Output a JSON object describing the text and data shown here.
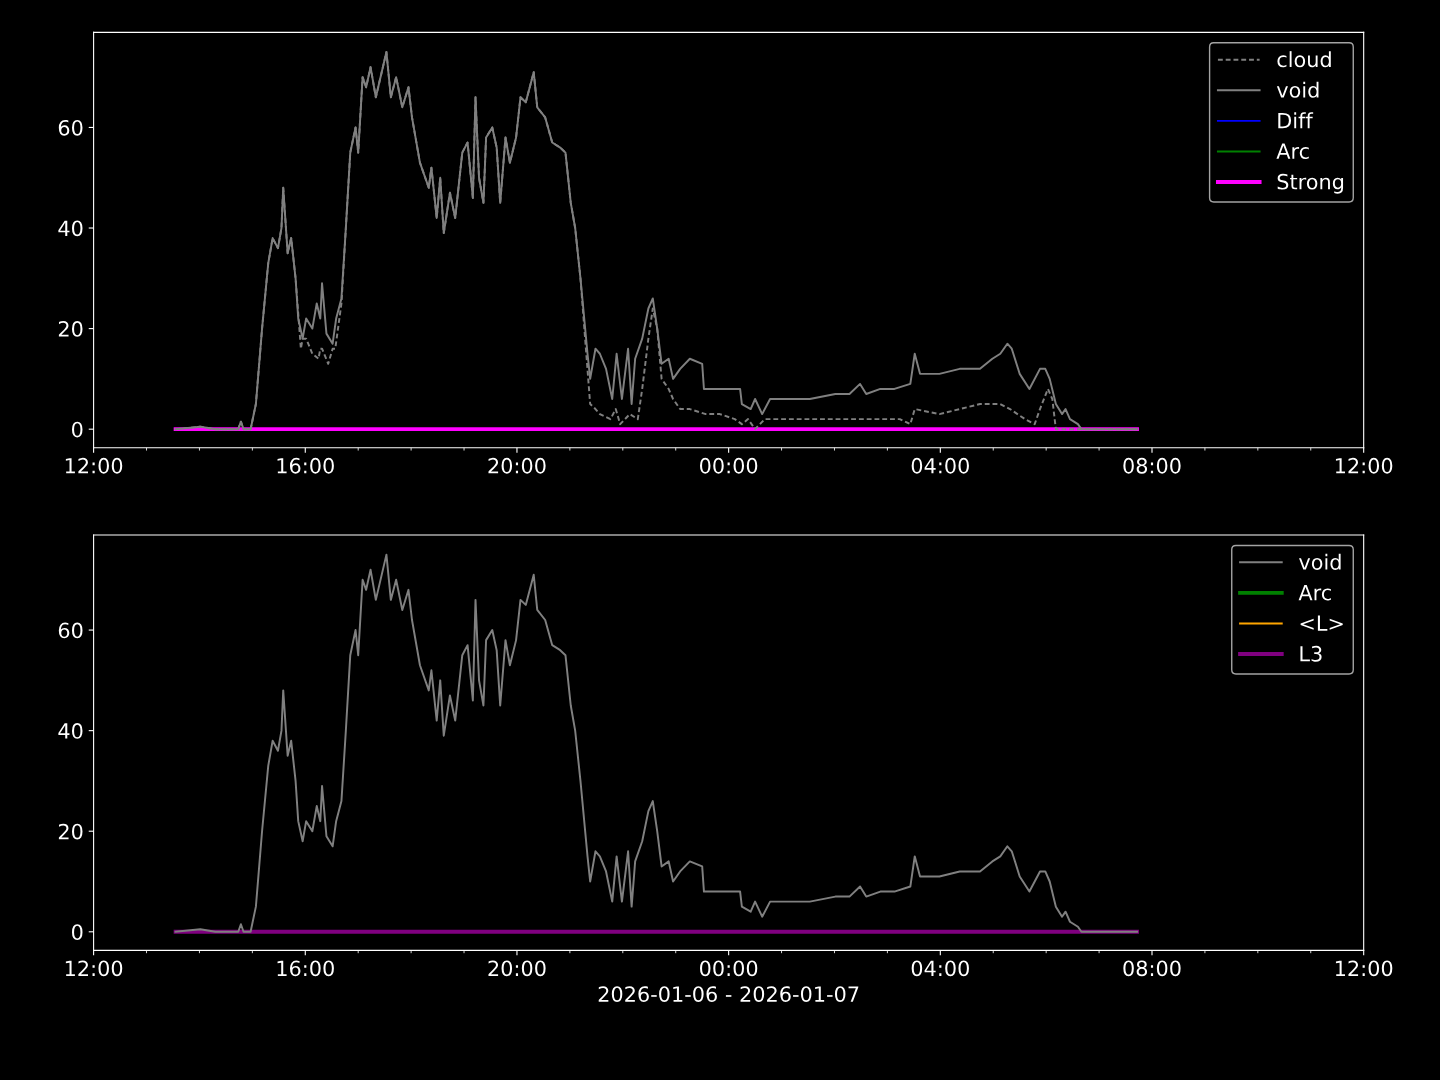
{
  "chart_data": [
    {
      "type": "line",
      "xlim": [
        "2026-01-06T12:00",
        "2026-01-07T12:00"
      ],
      "ylim": [
        -3.7,
        78.9
      ],
      "xticks": [
        {
          "value": "2026-01-06T12:00",
          "label": "12:00"
        },
        {
          "value": "2026-01-06T13:00",
          "label": null
        },
        {
          "value": "2026-01-06T14:00",
          "label": null
        },
        {
          "value": "2026-01-06T15:00",
          "label": null
        },
        {
          "value": "2026-01-06T16:00",
          "label": "16:00"
        },
        {
          "value": "2026-01-06T17:00",
          "label": null
        },
        {
          "value": "2026-01-06T18:00",
          "label": null
        },
        {
          "value": "2026-01-06T19:00",
          "label": null
        },
        {
          "value": "2026-01-06T20:00",
          "label": "20:00"
        },
        {
          "value": "2026-01-06T21:00",
          "label": null
        },
        {
          "value": "2026-01-06T22:00",
          "label": null
        },
        {
          "value": "2026-01-06T23:00",
          "label": null
        },
        {
          "value": "2026-01-07T00:00",
          "label": "00:00"
        },
        {
          "value": "2026-01-07T01:00",
          "label": null
        },
        {
          "value": "2026-01-07T02:00",
          "label": null
        },
        {
          "value": "2026-01-07T03:00",
          "label": null
        },
        {
          "value": "2026-01-07T04:00",
          "label": "04:00"
        },
        {
          "value": "2026-01-07T05:00",
          "label": null
        },
        {
          "value": "2026-01-07T06:00",
          "label": null
        },
        {
          "value": "2026-01-07T07:00",
          "label": null
        },
        {
          "value": "2026-01-07T08:00",
          "label": "08:00"
        },
        {
          "value": "2026-01-07T09:00",
          "label": null
        },
        {
          "value": "2026-01-07T10:00",
          "label": null
        },
        {
          "value": "2026-01-07T11:00",
          "label": null
        },
        {
          "value": "2026-01-07T12:00",
          "label": "12:00"
        }
      ],
      "yticks": [
        0,
        20,
        40,
        60
      ],
      "grid": false,
      "legend": "top right",
      "marker": "none",
      "series": [
        {
          "name": "cloud",
          "color": "#808080",
          "line_style": "dashed",
          "x": [
            "2026-01-06T13:33",
            "2026-01-06T14:01",
            "2026-01-06T14:18",
            "2026-01-06T14:44",
            "2026-01-06T14:47",
            "2026-01-06T14:50",
            "2026-01-06T14:58",
            "2026-01-06T15:04",
            "2026-01-06T15:11",
            "2026-01-06T15:18",
            "2026-01-06T15:23",
            "2026-01-06T15:29",
            "2026-01-06T15:33",
            "2026-01-06T15:35",
            "2026-01-06T15:40",
            "2026-01-06T15:44",
            "2026-01-06T15:49",
            "2026-01-06T15:55",
            "2026-01-06T15:57",
            "2026-01-06T16:01",
            "2026-01-06T16:08",
            "2026-01-06T16:15",
            "2026-01-06T16:17",
            "2026-01-06T16:19",
            "2026-01-06T16:26",
            "2026-01-06T16:31",
            "2026-01-06T16:34",
            "2026-01-06T16:41",
            "2026-01-06T16:46",
            "2026-01-06T16:51",
            "2026-01-06T16:57",
            "2026-01-06T17:00",
            "2026-01-06T17:05",
            "2026-01-06T17:09",
            "2026-01-06T17:14",
            "2026-01-06T17:20",
            "2026-01-06T17:32",
            "2026-01-06T17:37",
            "2026-01-06T17:43",
            "2026-01-06T17:50",
            "2026-01-06T17:57",
            "2026-01-06T18:01",
            "2026-01-06T18:10",
            "2026-01-06T18:20",
            "2026-01-06T18:23",
            "2026-01-06T18:29",
            "2026-01-06T18:33",
            "2026-01-06T18:37",
            "2026-01-06T18:44",
            "2026-01-06T18:50",
            "2026-01-06T18:58",
            "2026-01-06T19:04",
            "2026-01-06T19:10",
            "2026-01-06T19:13",
            "2026-01-06T19:17",
            "2026-01-06T19:22",
            "2026-01-06T19:25",
            "2026-01-06T19:32",
            "2026-01-06T19:37",
            "2026-01-06T19:41",
            "2026-01-06T19:47",
            "2026-01-06T19:52",
            "2026-01-06T19:59",
            "2026-01-06T20:04",
            "2026-01-06T20:10",
            "2026-01-06T20:19",
            "2026-01-06T20:23",
            "2026-01-06T20:32",
            "2026-01-06T20:40",
            "2026-01-06T20:49",
            "2026-01-06T20:55",
            "2026-01-06T21:01",
            "2026-01-06T21:06",
            "2026-01-06T21:12",
            "2026-01-06T21:23",
            "2026-01-06T21:29",
            "2026-01-06T21:34",
            "2026-01-06T21:46",
            "2026-01-06T21:52",
            "2026-01-06T21:57",
            "2026-01-06T22:08",
            "2026-01-06T22:17",
            "2026-01-06T22:22",
            "2026-01-06T22:29",
            "2026-01-06T22:34",
            "2026-01-06T22:39",
            "2026-01-06T22:44",
            "2026-01-06T22:52",
            "2026-01-06T22:57",
            "2026-01-06T23:05",
            "2026-01-06T23:16",
            "2026-01-06T23:34",
            "2026-01-06T23:50",
            "2026-01-07T00:07",
            "2026-01-07T00:15",
            "2026-01-07T00:22",
            "2026-01-07T00:30",
            "2026-01-07T00:41",
            "2026-01-07T01:21",
            "2026-01-07T02:01",
            "2026-01-07T02:40",
            "2026-01-07T03:14",
            "2026-01-07T03:26",
            "2026-01-07T03:31",
            "2026-01-07T03:59",
            "2026-01-07T04:22",
            "2026-01-07T04:45",
            "2026-01-07T05:08",
            "2026-01-07T05:19",
            "2026-01-07T05:36",
            "2026-01-07T05:47",
            "2026-01-07T05:53",
            "2026-01-07T06:02",
            "2026-01-07T06:07",
            "2026-01-07T06:11",
            "2026-01-07T07:43"
          ],
          "values": [
            0,
            0.5,
            0,
            0,
            1.5,
            0,
            0,
            5,
            20,
            33,
            38,
            36,
            40,
            48,
            35,
            38,
            30,
            16,
            18,
            18,
            15,
            14,
            16,
            16,
            13,
            16,
            16,
            25,
            40,
            55,
            60,
            55,
            70,
            68,
            72,
            66,
            75,
            66,
            70,
            64,
            68,
            62,
            53,
            48,
            52,
            42,
            50,
            39,
            47,
            42,
            55,
            57,
            46,
            66,
            50,
            45,
            58,
            60,
            56,
            45,
            58,
            53,
            58,
            66,
            65,
            71,
            64,
            62,
            57,
            56,
            55,
            45,
            40,
            30,
            5,
            4,
            3,
            2,
            4,
            1,
            3,
            2,
            8,
            18,
            24,
            20,
            10,
            8,
            6,
            4,
            4,
            3,
            3,
            2,
            1,
            2,
            0,
            2,
            2,
            2,
            2,
            2,
            1,
            4,
            3,
            4,
            5,
            5,
            4,
            2,
            1,
            4,
            8,
            6,
            0,
            0
          ]
        },
        {
          "name": "void",
          "color": "#808080",
          "line_style": "solid",
          "x": [
            "2026-01-06T13:33",
            "2026-01-06T14:01",
            "2026-01-06T14:18",
            "2026-01-06T14:44",
            "2026-01-06T14:47",
            "2026-01-06T14:50",
            "2026-01-06T14:58",
            "2026-01-06T15:04",
            "2026-01-06T15:11",
            "2026-01-06T15:18",
            "2026-01-06T15:23",
            "2026-01-06T15:29",
            "2026-01-06T15:33",
            "2026-01-06T15:35",
            "2026-01-06T15:40",
            "2026-01-06T15:44",
            "2026-01-06T15:49",
            "2026-01-06T15:52",
            "2026-01-06T15:57",
            "2026-01-06T16:01",
            "2026-01-06T16:08",
            "2026-01-06T16:13",
            "2026-01-06T16:17",
            "2026-01-06T16:19",
            "2026-01-06T16:24",
            "2026-01-06T16:31",
            "2026-01-06T16:35",
            "2026-01-06T16:41",
            "2026-01-06T16:46",
            "2026-01-06T16:51",
            "2026-01-06T16:57",
            "2026-01-06T17:00",
            "2026-01-06T17:05",
            "2026-01-06T17:09",
            "2026-01-06T17:14",
            "2026-01-06T17:20",
            "2026-01-06T17:32",
            "2026-01-06T17:37",
            "2026-01-06T17:43",
            "2026-01-06T17:50",
            "2026-01-06T17:57",
            "2026-01-06T18:01",
            "2026-01-06T18:10",
            "2026-01-06T18:20",
            "2026-01-06T18:23",
            "2026-01-06T18:29",
            "2026-01-06T18:33",
            "2026-01-06T18:37",
            "2026-01-06T18:44",
            "2026-01-06T18:50",
            "2026-01-06T18:58",
            "2026-01-06T19:04",
            "2026-01-06T19:10",
            "2026-01-06T19:13",
            "2026-01-06T19:17",
            "2026-01-06T19:22",
            "2026-01-06T19:25",
            "2026-01-06T19:32",
            "2026-01-06T19:37",
            "2026-01-06T19:41",
            "2026-01-06T19:47",
            "2026-01-06T19:52",
            "2026-01-06T19:59",
            "2026-01-06T20:04",
            "2026-01-06T20:10",
            "2026-01-06T20:19",
            "2026-01-06T20:23",
            "2026-01-06T20:32",
            "2026-01-06T20:40",
            "2026-01-06T20:49",
            "2026-01-06T20:55",
            "2026-01-06T21:01",
            "2026-01-06T21:06",
            "2026-01-06T21:12",
            "2026-01-06T21:20",
            "2026-01-06T21:23",
            "2026-01-06T21:29",
            "2026-01-06T21:34",
            "2026-01-06T21:41",
            "2026-01-06T21:48",
            "2026-01-06T21:53",
            "2026-01-06T21:59",
            "2026-01-06T22:06",
            "2026-01-06T22:10",
            "2026-01-06T22:14",
            "2026-01-06T22:22",
            "2026-01-06T22:29",
            "2026-01-06T22:34",
            "2026-01-06T22:39",
            "2026-01-06T22:44",
            "2026-01-06T22:52",
            "2026-01-06T22:57",
            "2026-01-06T23:05",
            "2026-01-06T23:16",
            "2026-01-06T23:30",
            "2026-01-06T23:32",
            "2026-01-06T23:50",
            "2026-01-07T00:13",
            "2026-01-07T00:15",
            "2026-01-07T00:25",
            "2026-01-07T00:30",
            "2026-01-07T00:38",
            "2026-01-07T00:47",
            "2026-01-07T01:10",
            "2026-01-07T01:32",
            "2026-01-07T02:01",
            "2026-01-07T02:17",
            "2026-01-07T02:29",
            "2026-01-07T02:36",
            "2026-01-07T02:52",
            "2026-01-07T03:08",
            "2026-01-07T03:26",
            "2026-01-07T03:31",
            "2026-01-07T03:37",
            "2026-01-07T03:59",
            "2026-01-07T04:22",
            "2026-01-07T04:45",
            "2026-01-07T04:59",
            "2026-01-07T05:08",
            "2026-01-07T05:16",
            "2026-01-07T05:21",
            "2026-01-07T05:30",
            "2026-01-07T05:41",
            "2026-01-07T05:53",
            "2026-01-07T05:59",
            "2026-01-07T06:04",
            "2026-01-07T06:11",
            "2026-01-07T06:18",
            "2026-01-07T06:22",
            "2026-01-07T06:27",
            "2026-01-07T06:36",
            "2026-01-07T06:40",
            "2026-01-07T07:43"
          ],
          "values": [
            0,
            0.5,
            0,
            0,
            1.5,
            0,
            0,
            5,
            20,
            33,
            38,
            36,
            40,
            48,
            35,
            38,
            30,
            22,
            18,
            22,
            20,
            25,
            22,
            29,
            19,
            17,
            22,
            26,
            40,
            55,
            60,
            55,
            70,
            68,
            72,
            66,
            75,
            66,
            70,
            64,
            68,
            62,
            53,
            48,
            52,
            42,
            50,
            39,
            47,
            42,
            55,
            57,
            46,
            66,
            50,
            45,
            58,
            60,
            56,
            45,
            58,
            53,
            58,
            66,
            65,
            71,
            64,
            62,
            57,
            56,
            55,
            45,
            40,
            30,
            15,
            10,
            16,
            15,
            12,
            6,
            15,
            6,
            16,
            5,
            14,
            18,
            24,
            26,
            20,
            13,
            14,
            10,
            12,
            14,
            13,
            8,
            8,
            8,
            5,
            4,
            6,
            3,
            6,
            6,
            6,
            7,
            7,
            9,
            7,
            8,
            8,
            9,
            15,
            11,
            11,
            12,
            12,
            14,
            15,
            17,
            16,
            11,
            8,
            12,
            12,
            10,
            5,
            3,
            4,
            2,
            1,
            0,
            0
          ]
        },
        {
          "name": "Diff",
          "color": "#0000ff",
          "line_style": "solid"
        },
        {
          "name": "Arc",
          "color": "#008000",
          "line_style": "solid"
        },
        {
          "name": "Strong",
          "color": "#ff00ff",
          "line_style": "solid",
          "x": [
            "2026-01-06T13:33",
            "2026-01-07T07:43"
          ],
          "values": [
            0,
            0
          ]
        }
      ]
    },
    {
      "type": "line",
      "xlim": [
        "2026-01-06T12:00",
        "2026-01-07T12:00"
      ],
      "ylim": [
        -3.7,
        78.9
      ],
      "xlabel": "2026-01-06 - 2026-01-07",
      "xticks": [
        {
          "value": "2026-01-06T12:00",
          "label": "12:00"
        },
        {
          "value": "2026-01-06T13:00",
          "label": null
        },
        {
          "value": "2026-01-06T14:00",
          "label": null
        },
        {
          "value": "2026-01-06T15:00",
          "label": null
        },
        {
          "value": "2026-01-06T16:00",
          "label": "16:00"
        },
        {
          "value": "2026-01-06T17:00",
          "label": null
        },
        {
          "value": "2026-01-06T18:00",
          "label": null
        },
        {
          "value": "2026-01-06T19:00",
          "label": null
        },
        {
          "value": "2026-01-06T20:00",
          "label": "20:00"
        },
        {
          "value": "2026-01-06T21:00",
          "label": null
        },
        {
          "value": "2026-01-06T22:00",
          "label": null
        },
        {
          "value": "2026-01-06T23:00",
          "label": null
        },
        {
          "value": "2026-01-07T00:00",
          "label": "00:00"
        },
        {
          "value": "2026-01-07T01:00",
          "label": null
        },
        {
          "value": "2026-01-07T02:00",
          "label": null
        },
        {
          "value": "2026-01-07T03:00",
          "label": null
        },
        {
          "value": "2026-01-07T04:00",
          "label": "04:00"
        },
        {
          "value": "2026-01-07T05:00",
          "label": null
        },
        {
          "value": "2026-01-07T06:00",
          "label": null
        },
        {
          "value": "2026-01-07T07:00",
          "label": null
        },
        {
          "value": "2026-01-07T08:00",
          "label": "08:00"
        },
        {
          "value": "2026-01-07T09:00",
          "label": null
        },
        {
          "value": "2026-01-07T10:00",
          "label": null
        },
        {
          "value": "2026-01-07T11:00",
          "label": null
        },
        {
          "value": "2026-01-07T12:00",
          "label": "12:00"
        }
      ],
      "yticks": [
        0,
        20,
        40,
        60
      ],
      "grid": false,
      "legend": "top right",
      "marker": "none",
      "series": [
        {
          "name": "void",
          "color": "#808080",
          "line_style": "solid",
          "x": [
            "2026-01-06T13:33",
            "2026-01-06T14:01",
            "2026-01-06T14:18",
            "2026-01-06T14:44",
            "2026-01-06T14:47",
            "2026-01-06T14:50",
            "2026-01-06T14:58",
            "2026-01-06T15:04",
            "2026-01-06T15:11",
            "2026-01-06T15:18",
            "2026-01-06T15:23",
            "2026-01-06T15:29",
            "2026-01-06T15:33",
            "2026-01-06T15:35",
            "2026-01-06T15:40",
            "2026-01-06T15:44",
            "2026-01-06T15:49",
            "2026-01-06T15:52",
            "2026-01-06T15:57",
            "2026-01-06T16:01",
            "2026-01-06T16:08",
            "2026-01-06T16:13",
            "2026-01-06T16:17",
            "2026-01-06T16:19",
            "2026-01-06T16:24",
            "2026-01-06T16:31",
            "2026-01-06T16:35",
            "2026-01-06T16:41",
            "2026-01-06T16:46",
            "2026-01-06T16:51",
            "2026-01-06T16:57",
            "2026-01-06T17:00",
            "2026-01-06T17:05",
            "2026-01-06T17:09",
            "2026-01-06T17:14",
            "2026-01-06T17:20",
            "2026-01-06T17:32",
            "2026-01-06T17:37",
            "2026-01-06T17:43",
            "2026-01-06T17:50",
            "2026-01-06T17:57",
            "2026-01-06T18:01",
            "2026-01-06T18:10",
            "2026-01-06T18:20",
            "2026-01-06T18:23",
            "2026-01-06T18:29",
            "2026-01-06T18:33",
            "2026-01-06T18:37",
            "2026-01-06T18:44",
            "2026-01-06T18:50",
            "2026-01-06T18:58",
            "2026-01-06T19:04",
            "2026-01-06T19:10",
            "2026-01-06T19:13",
            "2026-01-06T19:17",
            "2026-01-06T19:22",
            "2026-01-06T19:25",
            "2026-01-06T19:32",
            "2026-01-06T19:37",
            "2026-01-06T19:41",
            "2026-01-06T19:47",
            "2026-01-06T19:52",
            "2026-01-06T19:59",
            "2026-01-06T20:04",
            "2026-01-06T20:10",
            "2026-01-06T20:19",
            "2026-01-06T20:23",
            "2026-01-06T20:32",
            "2026-01-06T20:40",
            "2026-01-06T20:49",
            "2026-01-06T20:55",
            "2026-01-06T21:01",
            "2026-01-06T21:06",
            "2026-01-06T21:12",
            "2026-01-06T21:20",
            "2026-01-06T21:23",
            "2026-01-06T21:29",
            "2026-01-06T21:34",
            "2026-01-06T21:41",
            "2026-01-06T21:48",
            "2026-01-06T21:53",
            "2026-01-06T21:59",
            "2026-01-06T22:06",
            "2026-01-06T22:10",
            "2026-01-06T22:14",
            "2026-01-06T22:22",
            "2026-01-06T22:29",
            "2026-01-06T22:34",
            "2026-01-06T22:39",
            "2026-01-06T22:44",
            "2026-01-06T22:52",
            "2026-01-06T22:57",
            "2026-01-06T23:05",
            "2026-01-06T23:16",
            "2026-01-06T23:30",
            "2026-01-06T23:32",
            "2026-01-06T23:50",
            "2026-01-07T00:13",
            "2026-01-07T00:15",
            "2026-01-07T00:25",
            "2026-01-07T00:30",
            "2026-01-07T00:38",
            "2026-01-07T00:47",
            "2026-01-07T01:10",
            "2026-01-07T01:32",
            "2026-01-07T02:01",
            "2026-01-07T02:17",
            "2026-01-07T02:29",
            "2026-01-07T02:36",
            "2026-01-07T02:52",
            "2026-01-07T03:08",
            "2026-01-07T03:26",
            "2026-01-07T03:31",
            "2026-01-07T03:37",
            "2026-01-07T03:59",
            "2026-01-07T04:22",
            "2026-01-07T04:45",
            "2026-01-07T04:59",
            "2026-01-07T05:08",
            "2026-01-07T05:16",
            "2026-01-07T05:21",
            "2026-01-07T05:30",
            "2026-01-07T05:41",
            "2026-01-07T05:53",
            "2026-01-07T05:59",
            "2026-01-07T06:04",
            "2026-01-07T06:11",
            "2026-01-07T06:18",
            "2026-01-07T06:22",
            "2026-01-07T06:27",
            "2026-01-07T06:36",
            "2026-01-07T06:40",
            "2026-01-07T07:43"
          ],
          "values": [
            0,
            0.5,
            0,
            0,
            1.5,
            0,
            0,
            5,
            20,
            33,
            38,
            36,
            40,
            48,
            35,
            38,
            30,
            22,
            18,
            22,
            20,
            25,
            22,
            29,
            19,
            17,
            22,
            26,
            40,
            55,
            60,
            55,
            70,
            68,
            72,
            66,
            75,
            66,
            70,
            64,
            68,
            62,
            53,
            48,
            52,
            42,
            50,
            39,
            47,
            42,
            55,
            57,
            46,
            66,
            50,
            45,
            58,
            60,
            56,
            45,
            58,
            53,
            58,
            66,
            65,
            71,
            64,
            62,
            57,
            56,
            55,
            45,
            40,
            30,
            15,
            10,
            16,
            15,
            12,
            6,
            15,
            6,
            16,
            5,
            14,
            18,
            24,
            26,
            20,
            13,
            14,
            10,
            12,
            14,
            13,
            8,
            8,
            8,
            5,
            4,
            6,
            3,
            6,
            6,
            6,
            7,
            7,
            9,
            7,
            8,
            8,
            9,
            15,
            11,
            11,
            12,
            12,
            14,
            15,
            17,
            16,
            11,
            8,
            12,
            12,
            10,
            5,
            3,
            4,
            2,
            1,
            0,
            0
          ]
        },
        {
          "name": "Arc",
          "color": "#008000",
          "line_style": "solid"
        },
        {
          "name": "<L>",
          "color": "#ffa500",
          "line_style": "solid"
        },
        {
          "name": "L3",
          "color": "#800080",
          "line_style": "solid",
          "x": [
            "2026-01-06T13:33",
            "2026-01-07T07:43"
          ],
          "values": [
            0,
            0
          ]
        }
      ]
    }
  ]
}
